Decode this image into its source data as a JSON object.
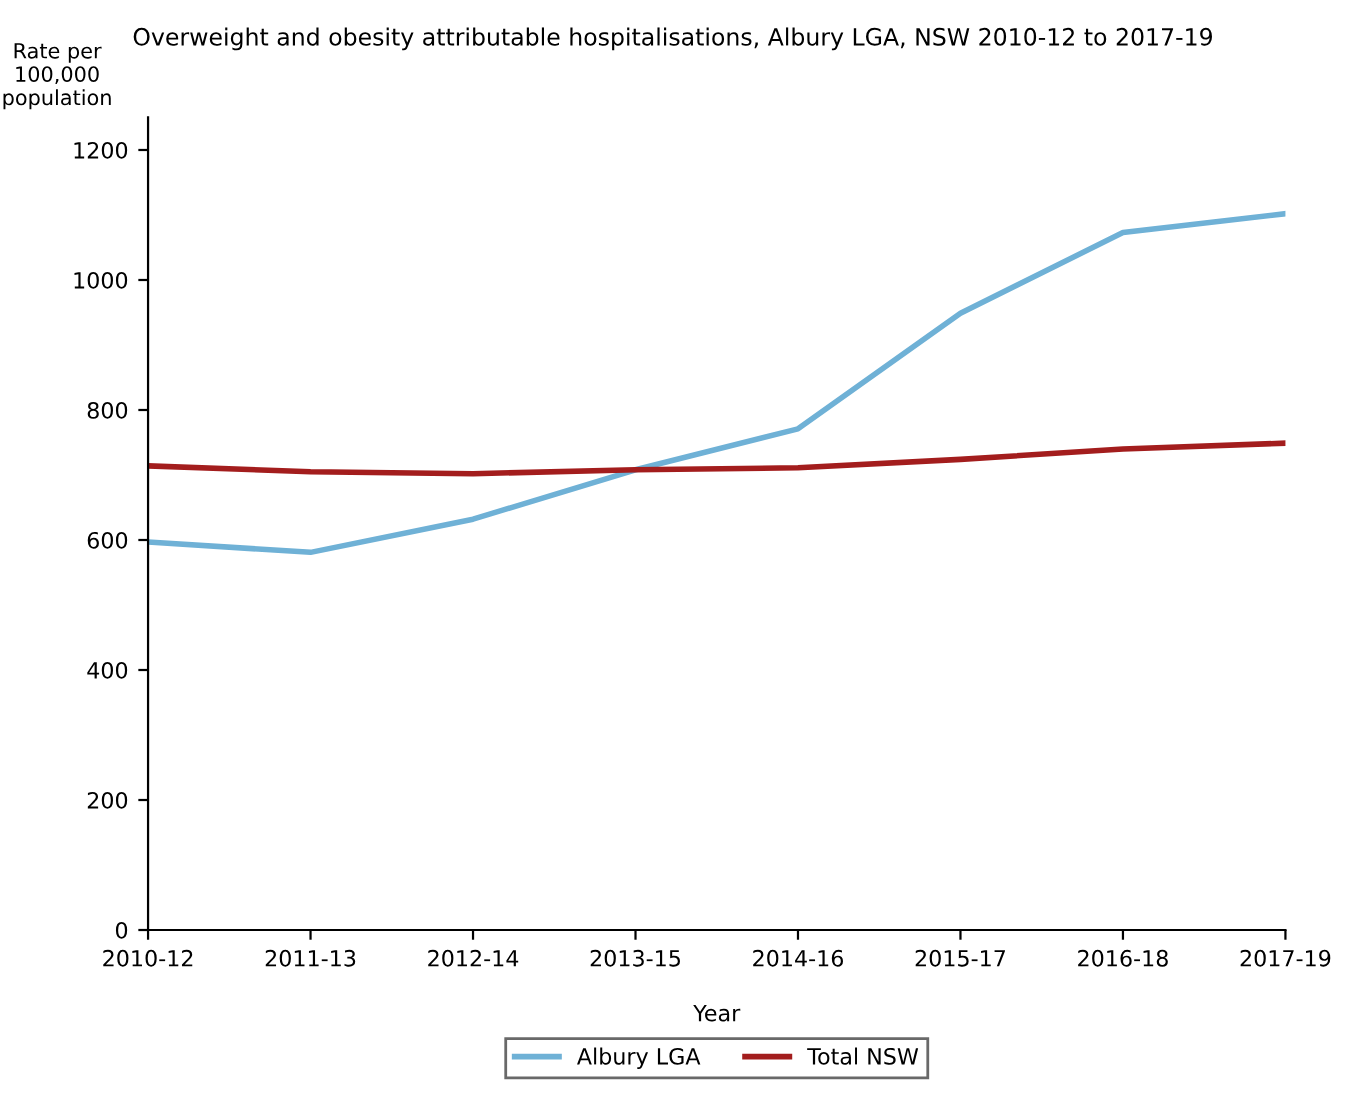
{
  "chart_data": {
    "type": "line",
    "title": "Overweight and obesity attributable hospitalisations, Albury LGA, NSW 2010-12 to 2017-19",
    "xlabel": "Year",
    "ylabel": "Rate per\n100,000\npopulation",
    "categories": [
      "2010-12",
      "2011-13",
      "2012-14",
      "2013-15",
      "2014-16",
      "2015-17",
      "2016-18",
      "2017-19"
    ],
    "series": [
      {
        "name": "Albury LGA",
        "color": "#6fb1d6",
        "values": [
          597,
          581,
          632,
          708,
          771,
          949,
          1073,
          1102
        ]
      },
      {
        "name": "Total NSW",
        "color": "#a31d1d",
        "values": [
          714,
          705,
          702,
          708,
          711,
          724,
          740,
          749
        ]
      }
    ],
    "ylim": [
      0,
      1250
    ],
    "yticks": [
      0,
      200,
      400,
      600,
      800,
      1000,
      1200
    ],
    "grid": false,
    "legend": "bottom",
    "marker": "none",
    "line_style": "solid"
  }
}
